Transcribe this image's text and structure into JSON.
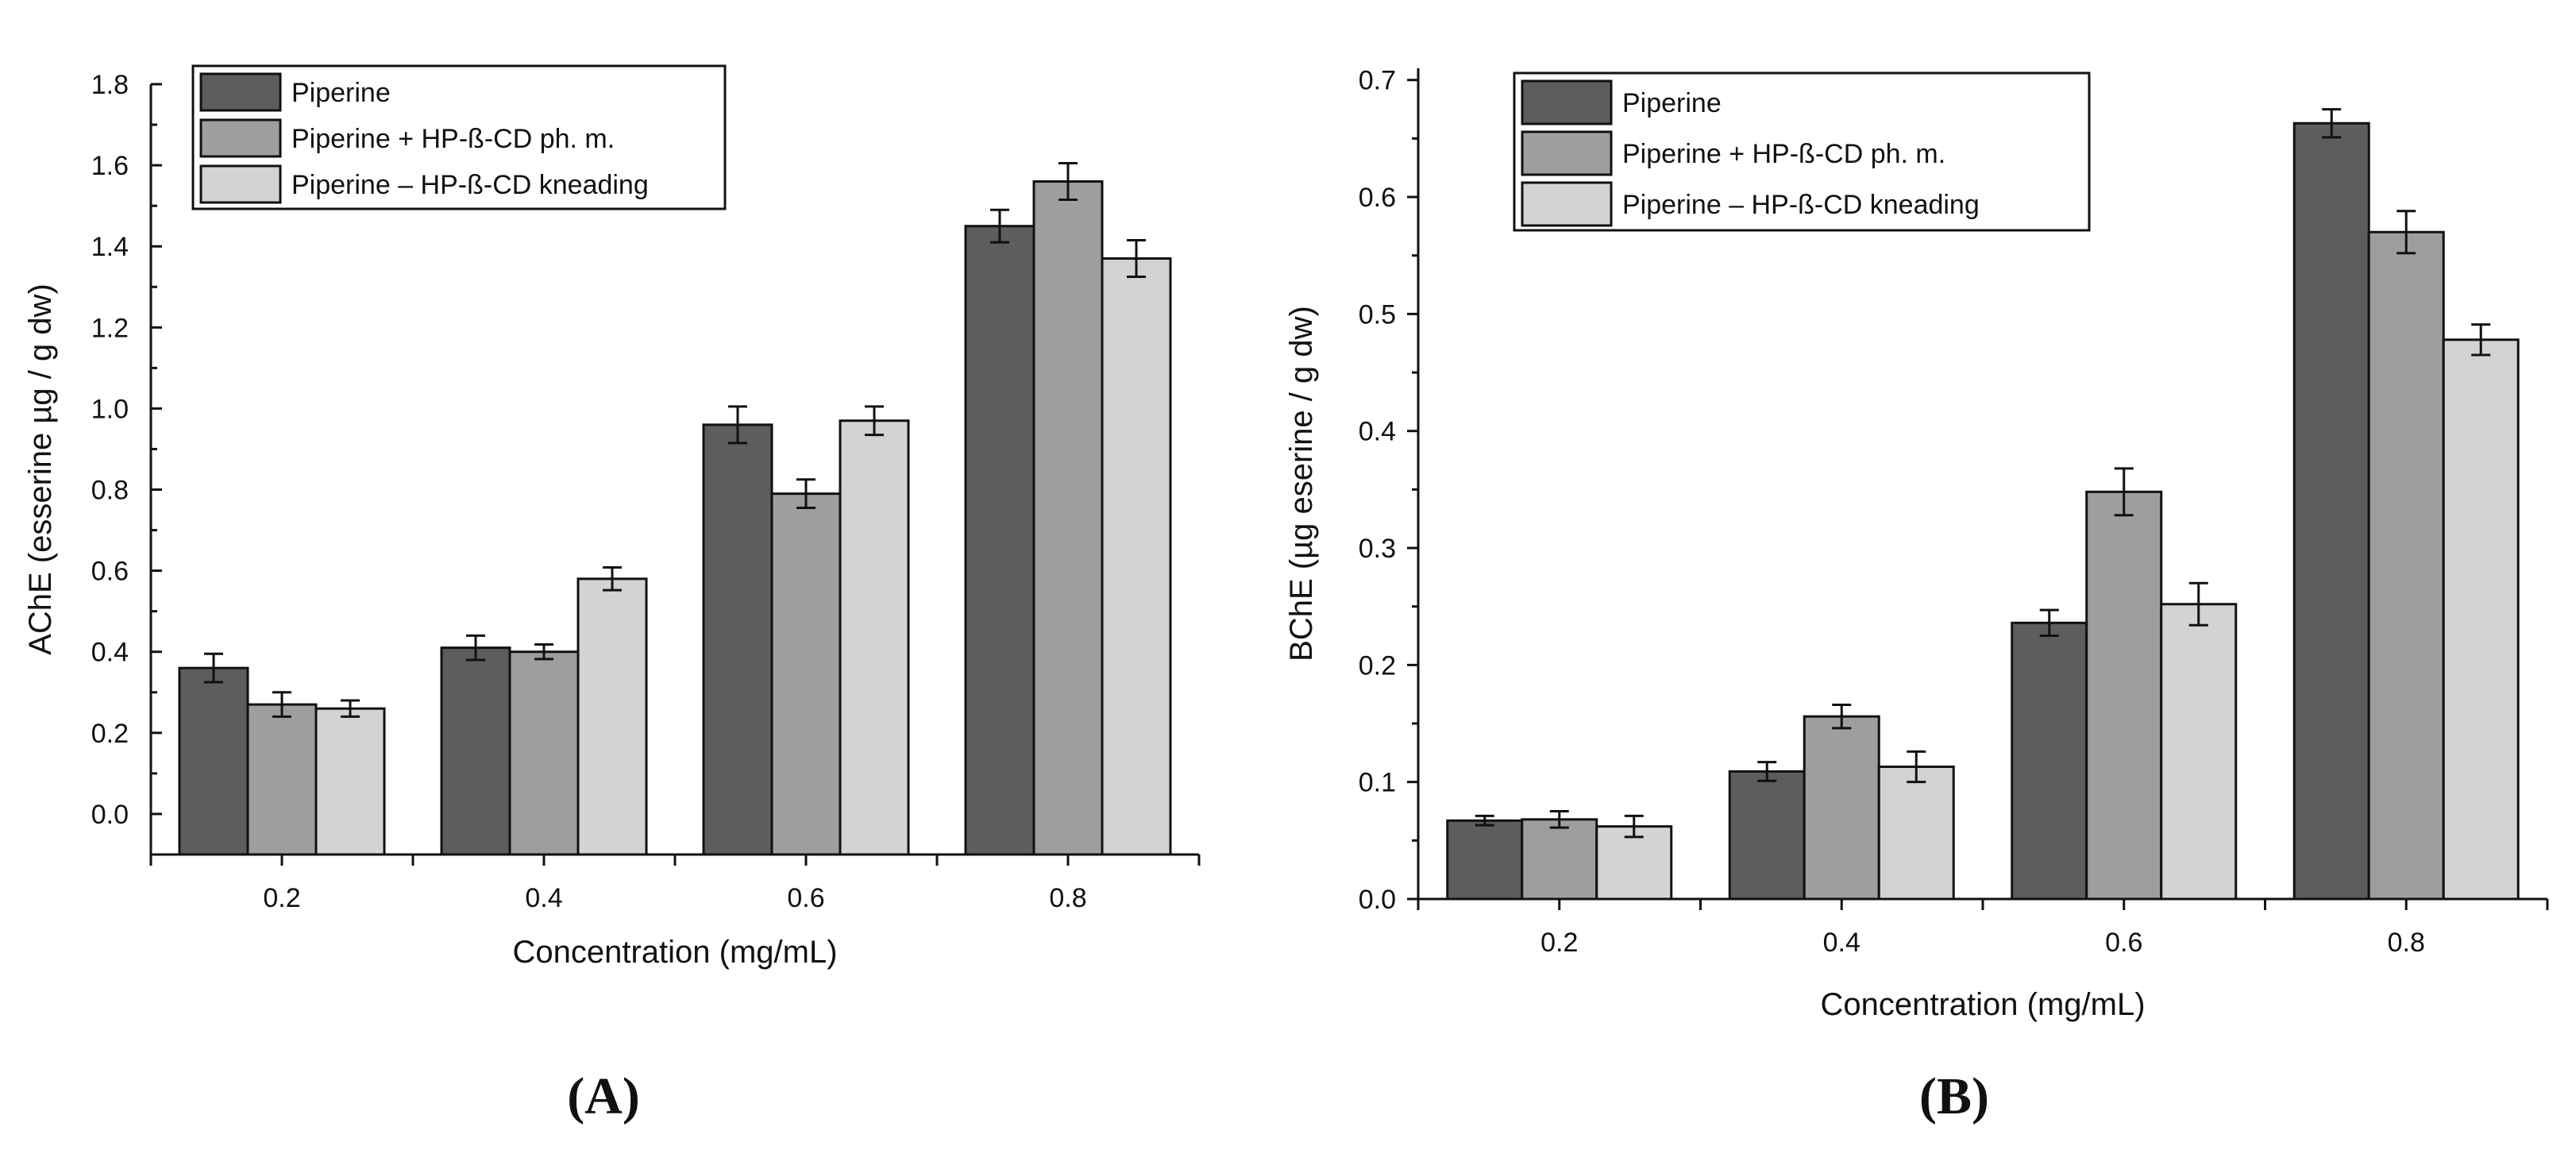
{
  "chart_data": [
    {
      "type": "bar",
      "panel_label": "(A)",
      "xlabel": "Concentration (mg/mL)",
      "ylabel": "AChE (esserine µg / g dw)",
      "categories": [
        "0.2",
        "0.4",
        "0.6",
        "0.8"
      ],
      "ylim": [
        -0.1,
        1.8
      ],
      "yticks": [
        "0.0",
        "0.2",
        "0.4",
        "0.6",
        "0.8",
        "1.0",
        "1.2",
        "1.4",
        "1.6",
        "1.8"
      ],
      "ytick_values": [
        0,
        0.2,
        0.4,
        0.6,
        0.8,
        1.0,
        1.2,
        1.4,
        1.6,
        1.8
      ],
      "legend_position": "top-left",
      "series": [
        {
          "name": "Piperine",
          "color": "#5d5d5d",
          "values": [
            0.36,
            0.41,
            0.96,
            1.45
          ],
          "errors": [
            0.035,
            0.03,
            0.045,
            0.04
          ]
        },
        {
          "name": "Piperine + HP-ß-CD ph. m.",
          "color": "#9e9e9e",
          "values": [
            0.27,
            0.4,
            0.79,
            1.56
          ],
          "errors": [
            0.03,
            0.018,
            0.035,
            0.045
          ]
        },
        {
          "name": "Piperine – HP-ß-CD kneading",
          "color": "#d3d3d3",
          "values": [
            0.26,
            0.58,
            0.97,
            1.37
          ],
          "errors": [
            0.02,
            0.028,
            0.035,
            0.045
          ]
        }
      ]
    },
    {
      "type": "bar",
      "panel_label": "(B)",
      "xlabel": "Concentration (mg/mL)",
      "ylabel": "BChE (µg eserine / g dw)",
      "categories": [
        "0.2",
        "0.4",
        "0.6",
        "0.8"
      ],
      "ylim": [
        0,
        0.71
      ],
      "yticks": [
        "0.0",
        "0.1",
        "0.2",
        "0.3",
        "0.4",
        "0.5",
        "0.6",
        "0.7"
      ],
      "ytick_values": [
        0,
        0.1,
        0.2,
        0.3,
        0.4,
        0.5,
        0.6,
        0.7
      ],
      "legend_position": "top-left",
      "series": [
        {
          "name": "Piperine",
          "color": "#5d5d5d",
          "values": [
            0.067,
            0.109,
            0.236,
            0.663
          ],
          "errors": [
            0.004,
            0.008,
            0.011,
            0.012
          ]
        },
        {
          "name": "Piperine + HP-ß-CD ph. m.",
          "color": "#9e9e9e",
          "values": [
            0.068,
            0.156,
            0.348,
            0.57
          ],
          "errors": [
            0.007,
            0.01,
            0.02,
            0.018
          ]
        },
        {
          "name": "Piperine – HP-ß-CD kneading",
          "color": "#d3d3d3",
          "values": [
            0.062,
            0.113,
            0.252,
            0.478
          ],
          "errors": [
            0.009,
            0.013,
            0.018,
            0.013
          ]
        }
      ]
    }
  ]
}
